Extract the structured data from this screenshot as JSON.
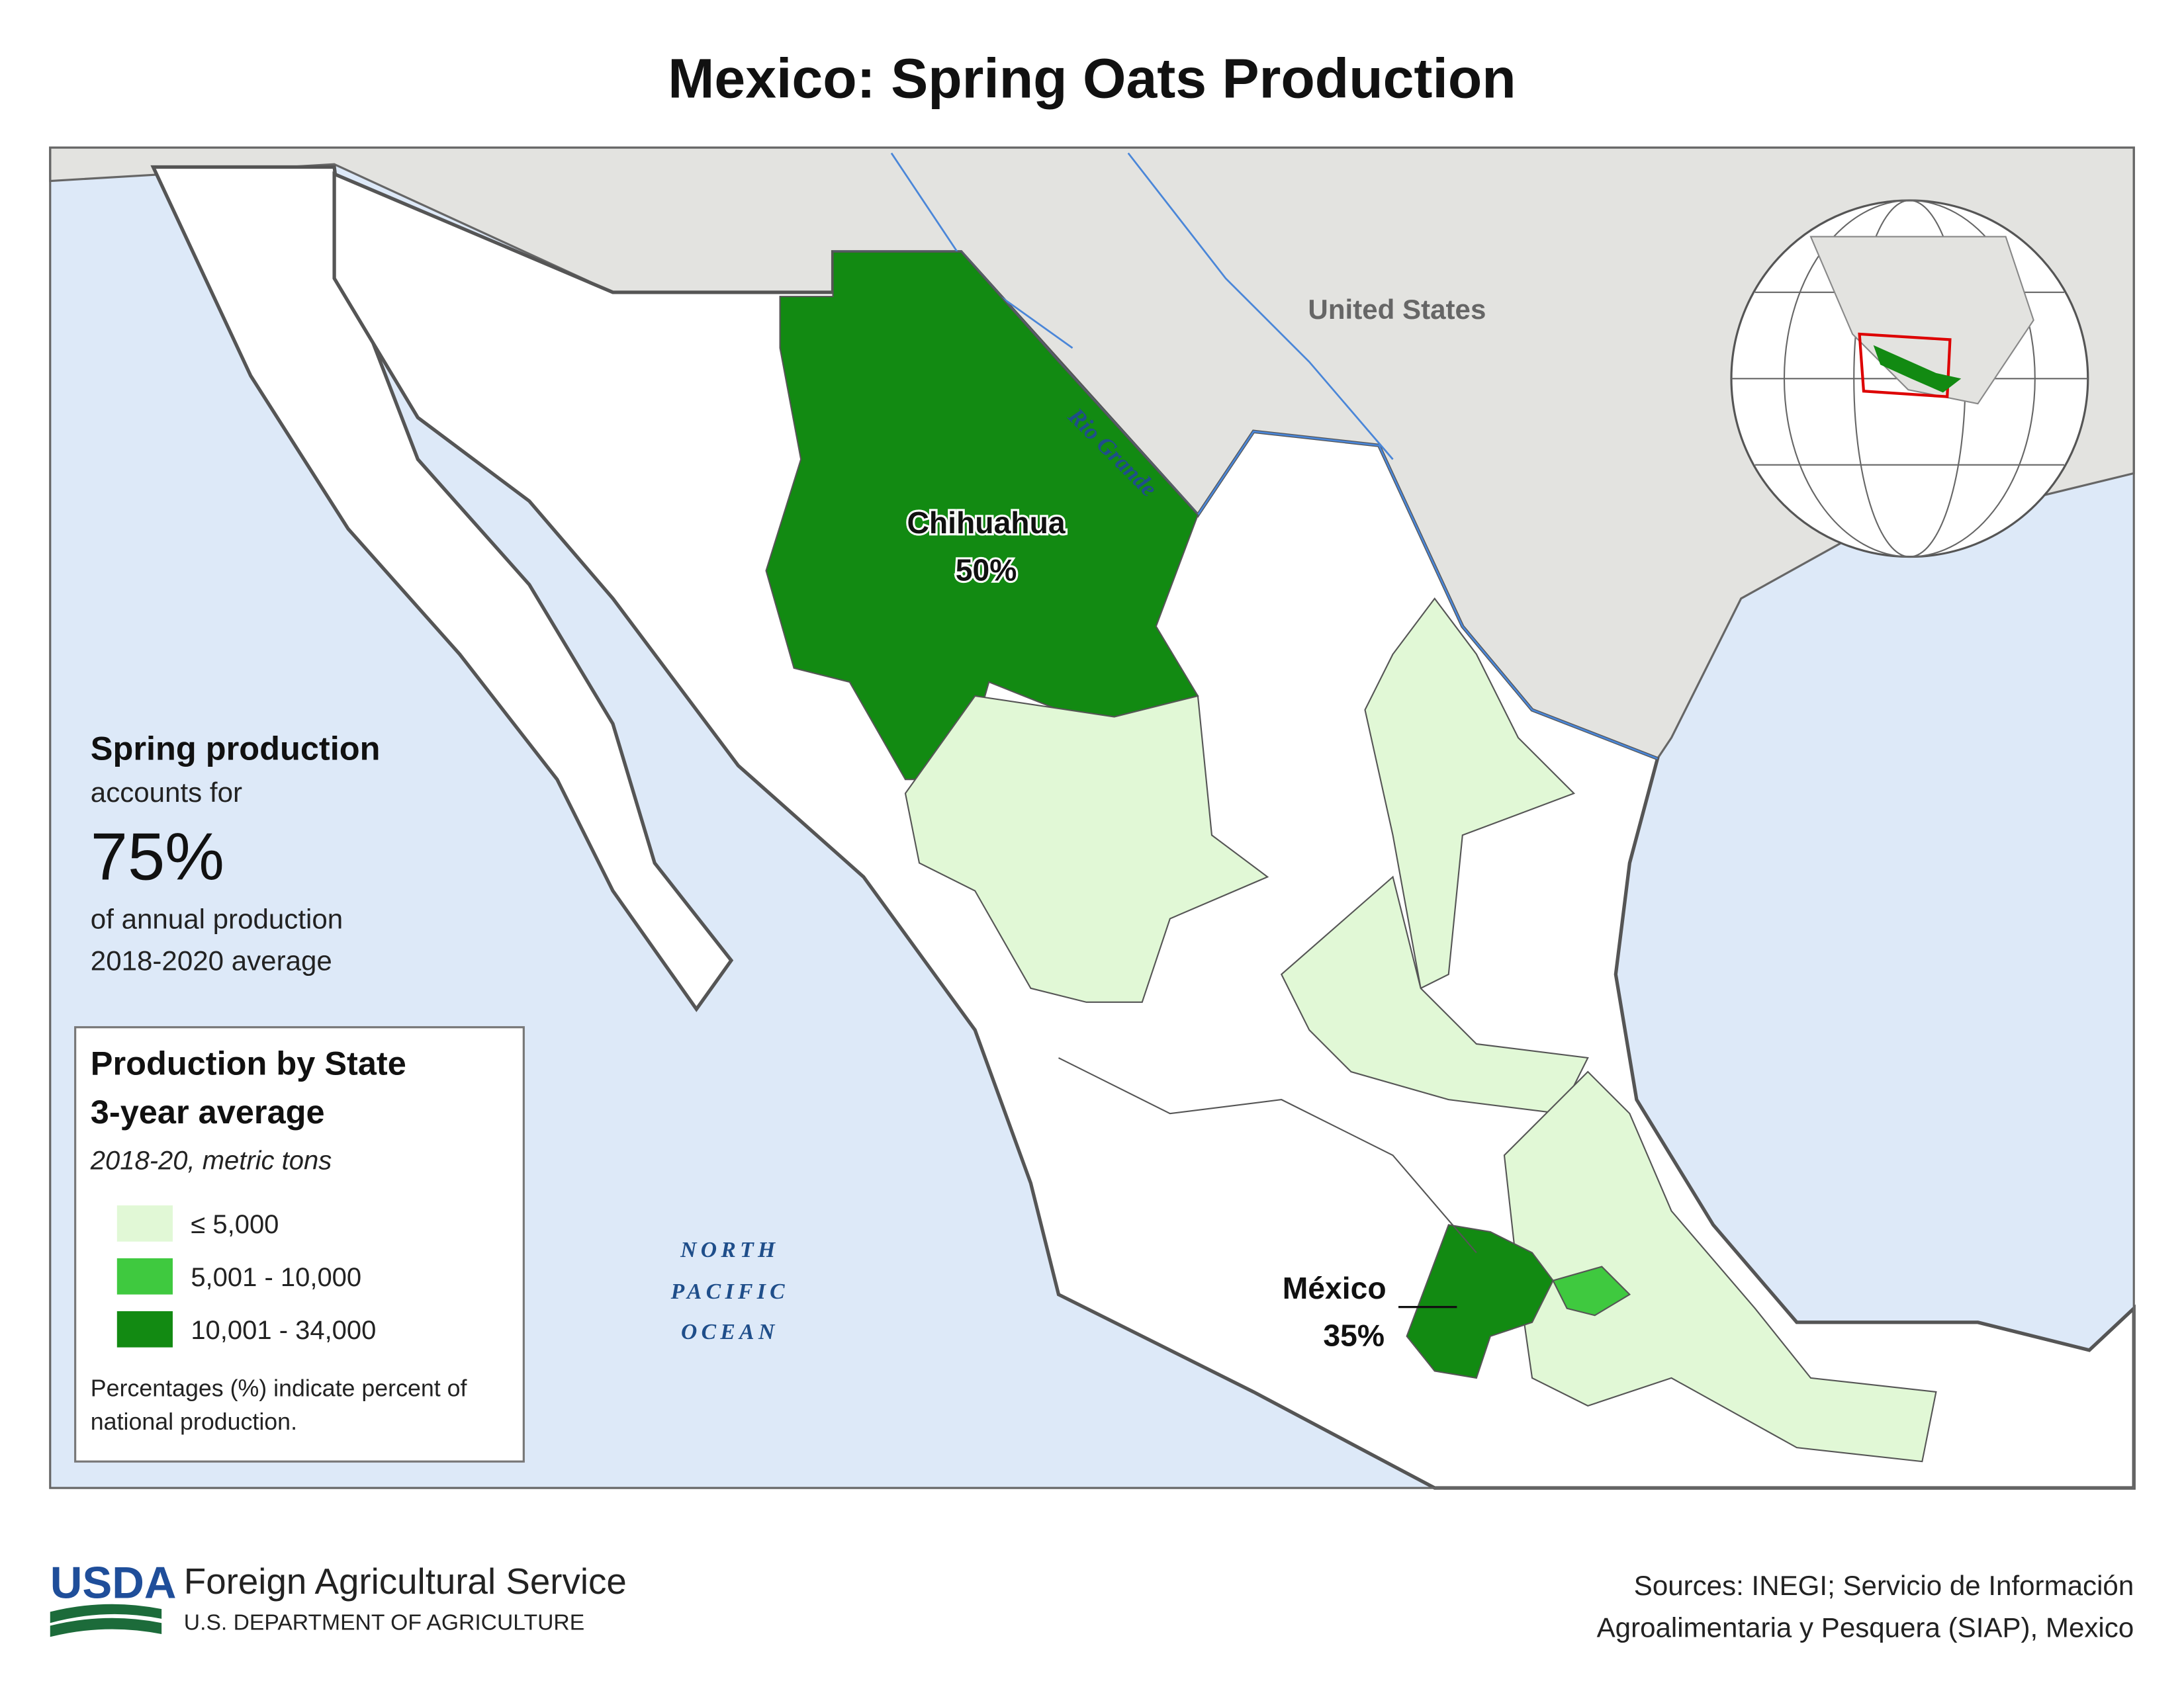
{
  "title": "Mexico: Spring Oats Production",
  "map": {
    "labels": {
      "country": "United States",
      "river": "Rio Grande",
      "ocean": [
        "NORTH",
        "PACIFIC",
        "OCEAN"
      ]
    },
    "regions": [
      {
        "name": "Chihuahua",
        "share": "50%"
      },
      {
        "name": "México",
        "share": "35%"
      }
    ]
  },
  "callout": {
    "heading": "Spring production",
    "line1": "accounts for",
    "value": "75%",
    "line2": "of annual production",
    "line3": "2018-2020 average"
  },
  "legend": {
    "title_lines": [
      "Production by State",
      "3-year average"
    ],
    "subtitle": "2018-20, metric tons",
    "items": [
      {
        "label": "≤ 5,000",
        "color": "#e1f8d6"
      },
      {
        "label": "5,001 - 10,000",
        "color": "#3fc93f"
      },
      {
        "label": "10,001 - 34,000",
        "color": "#128a12"
      }
    ],
    "note_lines": [
      "Percentages (%) indicate percent of",
      "national production."
    ]
  },
  "footer": {
    "logo": "USDA",
    "agency": "Foreign Agricultural Service",
    "department": "U.S. DEPARTMENT OF AGRICULTURE",
    "sources_lines": [
      "Sources: INEGI; Servicio de Información",
      "Agroalimentaria y Pesquera (SIAP), Mexico"
    ]
  }
}
